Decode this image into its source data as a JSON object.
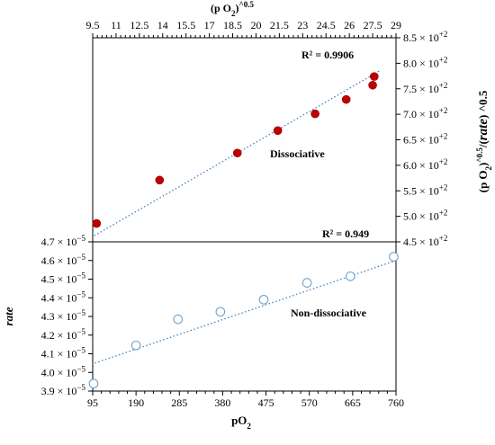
{
  "chart_data": [
    {
      "type": "scatter",
      "panel": "top",
      "x_axis": {
        "label_main": "(p O",
        "label_sub": "2",
        "label_close": ")",
        "label_sup": "^0.5",
        "position": "top",
        "range": [
          9.5,
          29
        ],
        "ticks": [
          "9.5",
          "11",
          "12.5",
          "14",
          "15.5",
          "17",
          "18.5",
          "20",
          "21.5",
          "23",
          "24.5",
          "26",
          "27.5",
          "29"
        ]
      },
      "y_axis": {
        "label_prefix": "(p O",
        "label_sub": "2",
        "label_mid": ")",
        "label_sup": "^0.5",
        "label_frac": "/(",
        "label_var": "rate",
        "label_close": ")",
        "label_exp": " ^0.5",
        "position": "right",
        "range": [
          450,
          850
        ],
        "ticks": [
          {
            "value": 450,
            "mantissa": "4.5",
            "exp": "+2"
          },
          {
            "value": 500,
            "mantissa": "5.0",
            "exp": "+2"
          },
          {
            "value": 550,
            "mantissa": "5.5",
            "exp": "+2"
          },
          {
            "value": 600,
            "mantissa": "6.0",
            "exp": "+2"
          },
          {
            "value": 650,
            "mantissa": "6.5",
            "exp": "+2"
          },
          {
            "value": 700,
            "mantissa": "7.0",
            "exp": "+2"
          },
          {
            "value": 750,
            "mantissa": "7.5",
            "exp": "+2"
          },
          {
            "value": 800,
            "mantissa": "8.0",
            "exp": "+2"
          },
          {
            "value": 850,
            "mantissa": "8.5",
            "exp": "+2"
          }
        ]
      },
      "points": [
        {
          "x": 9.75,
          "y": 486
        },
        {
          "x": 13.8,
          "y": 571
        },
        {
          "x": 18.8,
          "y": 624
        },
        {
          "x": 21.4,
          "y": 668
        },
        {
          "x": 23.8,
          "y": 701
        },
        {
          "x": 25.8,
          "y": 729
        },
        {
          "x": 27.5,
          "y": 757
        },
        {
          "x": 27.6,
          "y": 774
        }
      ],
      "trendline": {
        "x": [
          9.6,
          28
        ],
        "y": [
          462,
          786
        ],
        "style": "dotted"
      },
      "r2_label": "R² = 0.9906",
      "annotation": "Dissociative",
      "marker": "filled-circle",
      "marker_color": "#c00000"
    },
    {
      "type": "scatter",
      "panel": "bottom",
      "x_axis": {
        "label_main": "pO",
        "label_sub": "2",
        "position": "bottom",
        "range": [
          95,
          760
        ],
        "ticks": [
          "95",
          "190",
          "285",
          "380",
          "475",
          "570",
          "665",
          "760"
        ]
      },
      "y_axis": {
        "label": "rate",
        "position": "left",
        "range": [
          3.9e-05,
          4.7e-05
        ],
        "ticks": [
          {
            "value": 3.9e-05,
            "mantissa": "3.9",
            "exp": "−5"
          },
          {
            "value": 4e-05,
            "mantissa": "4.0",
            "exp": "−5"
          },
          {
            "value": 4.1e-05,
            "mantissa": "4.1",
            "exp": "−5"
          },
          {
            "value": 4.2e-05,
            "mantissa": "4.2",
            "exp": "−5"
          },
          {
            "value": 4.3e-05,
            "mantissa": "4.3",
            "exp": "−5"
          },
          {
            "value": 4.4e-05,
            "mantissa": "4.4",
            "exp": "−5"
          },
          {
            "value": 4.5e-05,
            "mantissa": "4.5",
            "exp": "−5"
          },
          {
            "value": 4.6e-05,
            "mantissa": "4.6",
            "exp": "−5"
          },
          {
            "value": 4.7e-05,
            "mantissa": "4.7",
            "exp": "−5"
          }
        ]
      },
      "points": [
        {
          "x": 97,
          "y": 3.94e-05
        },
        {
          "x": 190,
          "y": 4.145e-05
        },
        {
          "x": 282,
          "y": 4.285e-05
        },
        {
          "x": 375,
          "y": 4.325e-05
        },
        {
          "x": 470,
          "y": 4.39e-05
        },
        {
          "x": 565,
          "y": 4.48e-05
        },
        {
          "x": 660,
          "y": 4.515e-05
        },
        {
          "x": 755,
          "y": 4.62e-05
        }
      ],
      "trendline": {
        "x": [
          100,
          760
        ],
        "y": [
          4.05e-05,
          4.6e-05
        ],
        "style": "dotted"
      },
      "r2_label": "R² = 0.949",
      "annotation": "Non-dissociative",
      "marker": "open-circle",
      "marker_color": "#6fa3cc"
    }
  ],
  "colors": {
    "axis": "#000000",
    "filled_marker": "#c00000",
    "open_marker": "#6fa3cc",
    "trendline": "#4a7fb3"
  },
  "sci_sep": "× 10"
}
